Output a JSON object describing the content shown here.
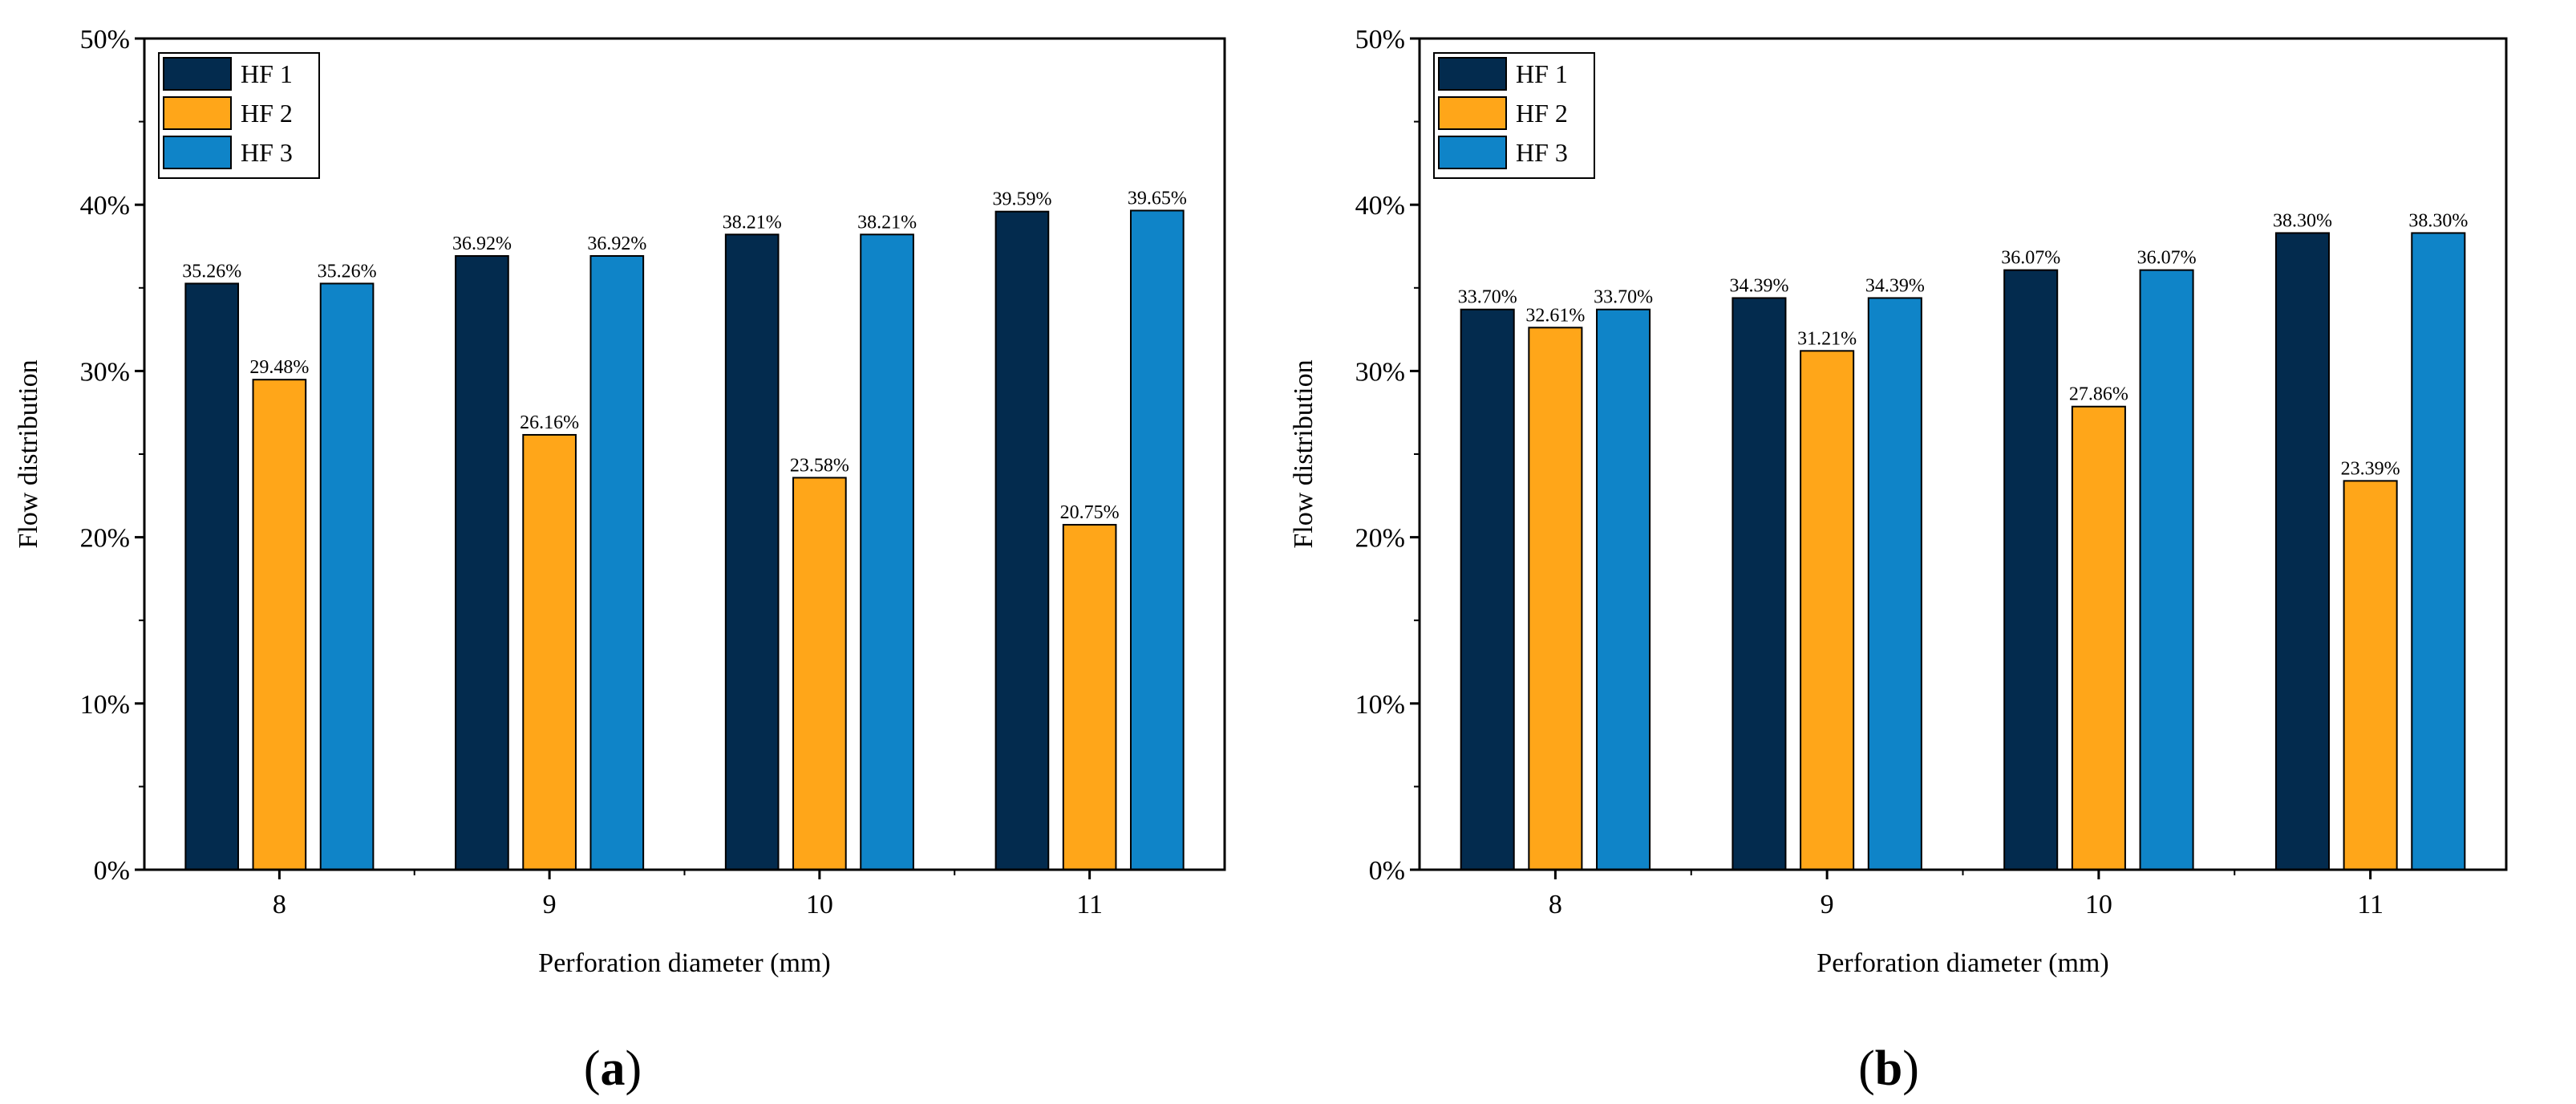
{
  "figure": {
    "panels": [
      {
        "label_open": "(",
        "label_letter": "a",
        "label_close": ")"
      },
      {
        "label_open": "(",
        "label_letter": "b",
        "label_close": ")"
      }
    ]
  },
  "chart_data": [
    {
      "type": "bar",
      "panel": "a",
      "title": "",
      "xlabel": "Perforation diameter (mm)",
      "ylabel": "Flow distribution",
      "categories": [
        "8",
        "9",
        "10",
        "11"
      ],
      "ylim": [
        0,
        50
      ],
      "yticks": [
        0,
        10,
        20,
        30,
        40,
        50
      ],
      "ytick_labels": [
        "0%",
        "10%",
        "20%",
        "30%",
        "40%",
        "50%"
      ],
      "legend_position": "top-left",
      "series": [
        {
          "name": "HF 1",
          "color": "#032B4E",
          "values": [
            35.26,
            36.92,
            38.21,
            39.59
          ],
          "labels": [
            "35.26%",
            "36.92%",
            "38.21%",
            "39.59%"
          ]
        },
        {
          "name": "HF 2",
          "color": "#FFA619",
          "values": [
            29.48,
            26.16,
            23.58,
            20.75
          ],
          "labels": [
            "29.48%",
            "26.16%",
            "23.58%",
            "20.75%"
          ]
        },
        {
          "name": "HF 3",
          "color": "#0F84C8",
          "values": [
            35.26,
            36.92,
            38.21,
            39.65
          ],
          "labels": [
            "35.26%",
            "36.92%",
            "38.21%",
            "39.65%"
          ]
        }
      ]
    },
    {
      "type": "bar",
      "panel": "b",
      "title": "",
      "xlabel": "Perforation diameter (mm)",
      "ylabel": "Flow distribution",
      "categories": [
        "8",
        "9",
        "10",
        "11"
      ],
      "ylim": [
        0,
        50
      ],
      "yticks": [
        0,
        10,
        20,
        30,
        40,
        50
      ],
      "ytick_labels": [
        "0%",
        "10%",
        "20%",
        "30%",
        "40%",
        "50%"
      ],
      "legend_position": "top-left",
      "series": [
        {
          "name": "HF 1",
          "color": "#032B4E",
          "values": [
            33.7,
            34.39,
            36.07,
            38.3
          ],
          "labels": [
            "33.70%",
            "34.39%",
            "36.07%",
            "38.30%"
          ]
        },
        {
          "name": "HF 2",
          "color": "#FFA619",
          "values": [
            32.61,
            31.21,
            27.86,
            23.39
          ],
          "labels": [
            "32.61%",
            "31.21%",
            "27.86%",
            "23.39%"
          ]
        },
        {
          "name": "HF 3",
          "color": "#0F84C8",
          "values": [
            33.7,
            34.39,
            36.07,
            38.3
          ],
          "labels": [
            "33.70%",
            "34.39%",
            "36.07%",
            "38.30%"
          ]
        }
      ]
    }
  ]
}
